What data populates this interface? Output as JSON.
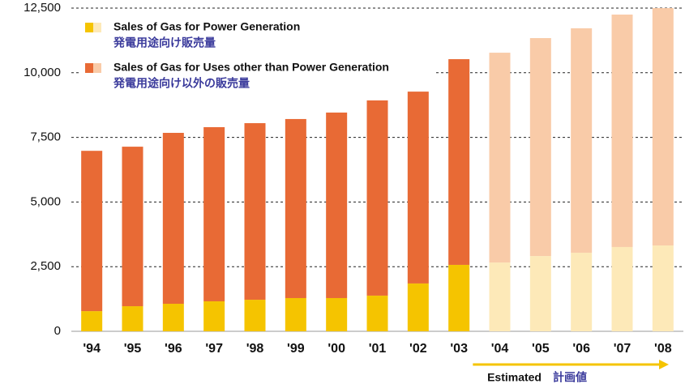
{
  "chart_data": {
    "type": "stacked_bar",
    "categories": [
      "'94",
      "'95",
      "'96",
      "'97",
      "'98",
      "'99",
      "'00",
      "'01",
      "'02",
      "'03",
      "'04",
      "'05",
      "'06",
      "'07",
      "'08"
    ],
    "series": [
      {
        "name": "Sales of Gas for Power Generation",
        "name_ja": "発電用途向け販売量",
        "color": "#f5c400",
        "estimate_color": "#fde9b8",
        "values": [
          780,
          970,
          1065,
          1160,
          1220,
          1285,
          1285,
          1380,
          1850,
          2570,
          2660,
          2910,
          3040,
          3260,
          3320
        ]
      },
      {
        "name": "Sales of Gas for Uses other than Power Generation",
        "name_ja": "発電用途向け以外の販売量",
        "color": "#e86a35",
        "estimate_color": "#f9cba8",
        "values": [
          6200,
          6170,
          6610,
          6735,
          6830,
          6925,
          7175,
          7550,
          7420,
          7955,
          8115,
          8430,
          8680,
          8990,
          9180
        ]
      }
    ],
    "ylim": [
      0,
      12500
    ],
    "yticks": [
      0,
      {
        "value": 2500,
        "label": "2,500"
      },
      {
        "value": 5000,
        "label": "5,000"
      },
      {
        "value": 7500,
        "label": "7,500"
      },
      {
        "value": 10000,
        "label": "10,000"
      },
      {
        "value": 12500,
        "label": "12,500"
      }
    ],
    "grid": true,
    "estimate": {
      "text": "Estimated",
      "text_ja": "計画値",
      "start": "'04"
    }
  }
}
